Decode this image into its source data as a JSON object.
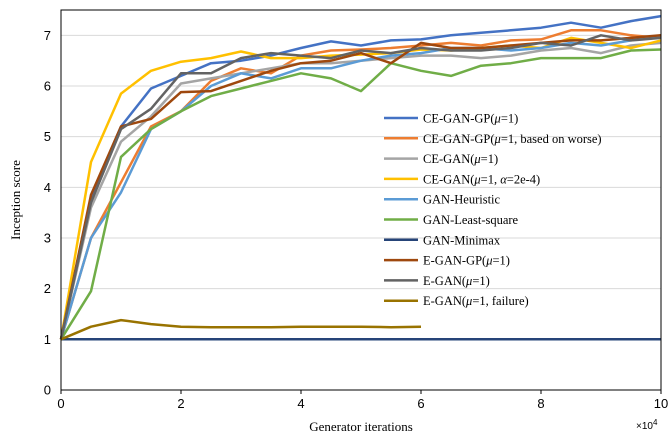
{
  "chart_data": {
    "type": "line",
    "xlabel": "Generator iterations",
    "ylabel": "Inception score",
    "x_multiplier": "×10",
    "x_multiplier_exp": "4",
    "xlim": [
      0,
      10
    ],
    "ylim": [
      0,
      7.5
    ],
    "xticks": [
      0,
      2,
      4,
      6,
      8,
      10
    ],
    "yticks": [
      0,
      1,
      2,
      3,
      4,
      5,
      6,
      7
    ],
    "grid": "horizontal",
    "legend_position": "right",
    "series": [
      {
        "name": "CE-GAN-GP(μ=1)",
        "legend_parts": [
          "CE-GAN-GP(",
          "μ",
          "=1)"
        ],
        "color": "#4472C4",
        "x": [
          0,
          0.5,
          1,
          1.5,
          2,
          2.5,
          3,
          3.5,
          4,
          4.5,
          5,
          5.5,
          6,
          6.5,
          7,
          7.5,
          8,
          8.5,
          9,
          9.5,
          10
        ],
        "y": [
          1.0,
          3.8,
          5.2,
          5.95,
          6.2,
          6.45,
          6.5,
          6.6,
          6.75,
          6.88,
          6.8,
          6.9,
          6.92,
          7.0,
          7.05,
          7.1,
          7.15,
          7.25,
          7.15,
          7.28,
          7.38
        ]
      },
      {
        "name": "CE-GAN-GP(μ=1, based on worse)",
        "legend_parts": [
          "CE-GAN-GP(",
          "μ",
          "=1, based on worse)"
        ],
        "color": "#ED7D31",
        "x": [
          0,
          0.5,
          1,
          1.5,
          2,
          2.5,
          3,
          3.5,
          4,
          4.5,
          5,
          5.5,
          6,
          6.5,
          7,
          7.5,
          8,
          8.5,
          9,
          9.5,
          10
        ],
        "y": [
          1.0,
          3.0,
          4.1,
          5.2,
          5.5,
          6.1,
          6.35,
          6.25,
          6.6,
          6.7,
          6.72,
          6.75,
          6.8,
          6.85,
          6.8,
          6.9,
          6.92,
          7.1,
          7.1,
          7.0,
          6.95
        ]
      },
      {
        "name": "CE-GAN(μ=1)",
        "legend_parts": [
          "CE-GAN(",
          "μ",
          "=1)"
        ],
        "color": "#A5A5A5",
        "x": [
          0,
          0.5,
          1,
          1.5,
          2,
          2.5,
          3,
          3.5,
          4,
          4.5,
          5,
          5.5,
          6,
          6.5,
          7,
          7.5,
          8,
          8.5,
          9,
          9.5,
          10
        ],
        "y": [
          1.0,
          3.6,
          4.9,
          5.4,
          6.05,
          6.15,
          6.25,
          6.35,
          6.45,
          6.45,
          6.5,
          6.55,
          6.6,
          6.6,
          6.55,
          6.6,
          6.7,
          6.75,
          6.65,
          6.8,
          6.85
        ]
      },
      {
        "name": "CE-GAN(μ=1, α=2e-4)",
        "legend_parts": [
          "CE-GAN(",
          "μ",
          "=1, ",
          "α",
          "=2e-4)"
        ],
        "color": "#FFC000",
        "x": [
          0,
          0.5,
          1,
          1.5,
          2,
          2.5,
          3,
          3.5,
          4,
          4.5,
          5,
          5.5,
          6,
          6.5,
          7,
          7.5,
          8,
          8.5,
          9,
          9.5,
          10
        ],
        "y": [
          1.0,
          4.5,
          5.85,
          6.3,
          6.48,
          6.55,
          6.68,
          6.55,
          6.55,
          6.6,
          6.62,
          6.65,
          6.72,
          6.7,
          6.75,
          6.8,
          6.75,
          6.95,
          6.85,
          6.75,
          6.9
        ]
      },
      {
        "name": "GAN-Heuristic",
        "legend_parts": [
          "GAN-Heuristic"
        ],
        "color": "#5B9BD5",
        "x": [
          0,
          0.5,
          1,
          1.5,
          2,
          2.5,
          3,
          3.5,
          4,
          4.5,
          5,
          5.5,
          6,
          6.5,
          7,
          7.5,
          8,
          8.5,
          9,
          9.5,
          10
        ],
        "y": [
          1.0,
          3.0,
          3.9,
          5.15,
          5.5,
          6.0,
          6.25,
          6.15,
          6.35,
          6.35,
          6.5,
          6.6,
          6.65,
          6.75,
          6.75,
          6.7,
          6.75,
          6.85,
          6.8,
          6.9,
          7.0
        ]
      },
      {
        "name": "GAN-Least-square",
        "legend_parts": [
          "GAN-Least-square"
        ],
        "color": "#70AD47",
        "x": [
          0,
          0.5,
          1,
          1.5,
          2,
          2.5,
          3,
          3.5,
          4,
          4.5,
          5,
          5.5,
          6,
          6.5,
          7,
          7.5,
          8,
          8.5,
          9,
          9.5,
          10
        ],
        "y": [
          1.0,
          1.95,
          4.6,
          5.15,
          5.5,
          5.8,
          5.95,
          6.1,
          6.25,
          6.15,
          5.9,
          6.45,
          6.3,
          6.2,
          6.4,
          6.45,
          6.55,
          6.55,
          6.55,
          6.7,
          6.72
        ]
      },
      {
        "name": "GAN-Minimax",
        "legend_parts": [
          "GAN-Minimax"
        ],
        "color": "#264478",
        "x": [
          0,
          2,
          4,
          6,
          8,
          10
        ],
        "y": [
          1.0,
          1.0,
          1.0,
          1.0,
          1.0,
          1.0
        ]
      },
      {
        "name": "E-GAN-GP(μ=1)",
        "legend_parts": [
          "E-GAN-GP(",
          "μ",
          "=1)"
        ],
        "color": "#9E480E",
        "x": [
          0,
          0.5,
          1,
          1.5,
          2,
          2.5,
          3,
          3.5,
          4,
          4.5,
          5,
          5.5,
          6,
          6.5,
          7,
          7.5,
          8,
          8.5,
          9,
          9.5,
          10
        ],
        "y": [
          1.0,
          3.85,
          5.2,
          5.35,
          5.88,
          5.9,
          6.1,
          6.3,
          6.45,
          6.5,
          6.65,
          6.45,
          6.85,
          6.75,
          6.75,
          6.8,
          6.85,
          6.9,
          6.9,
          6.95,
          7.0
        ]
      },
      {
        "name": "E-GAN(μ=1)",
        "legend_parts": [
          "E-GAN(",
          "μ",
          "=1)"
        ],
        "color": "#636363",
        "x": [
          0,
          0.5,
          1,
          1.5,
          2,
          2.5,
          3,
          3.5,
          4,
          4.5,
          5,
          5.5,
          6,
          6.5,
          7,
          7.5,
          8,
          8.5,
          9,
          9.5,
          10
        ],
        "y": [
          1.0,
          3.7,
          5.15,
          5.55,
          6.25,
          6.25,
          6.55,
          6.65,
          6.6,
          6.55,
          6.7,
          6.65,
          6.75,
          6.7,
          6.7,
          6.75,
          6.85,
          6.8,
          7.0,
          6.9,
          6.95
        ]
      },
      {
        "name": "E-GAN(μ=1, failure)",
        "legend_parts": [
          "E-GAN(",
          "μ",
          "=1, failure)"
        ],
        "color": "#997300",
        "x": [
          0,
          0.5,
          1,
          1.5,
          2,
          2.5,
          3,
          3.5,
          4,
          4.5,
          5,
          5.5,
          6
        ],
        "y": [
          1.0,
          1.25,
          1.38,
          1.3,
          1.25,
          1.24,
          1.24,
          1.24,
          1.25,
          1.25,
          1.25,
          1.24,
          1.25
        ]
      }
    ]
  }
}
